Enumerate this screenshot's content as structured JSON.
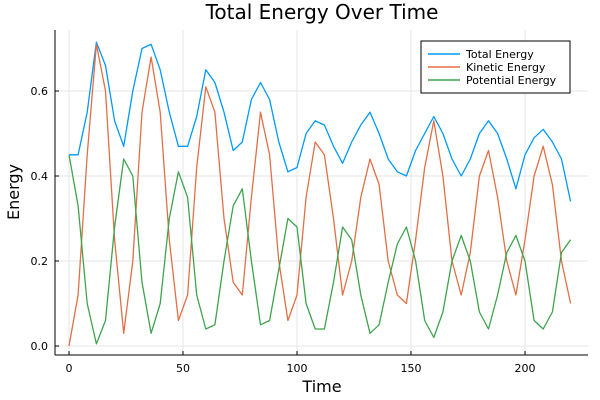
{
  "chart_data": {
    "type": "line",
    "title": "Total Energy Over Time",
    "xlabel": "Time",
    "ylabel": "Energy",
    "xlim": [
      -6,
      227
    ],
    "ylim": [
      -0.02,
      0.74
    ],
    "xticks": [
      0,
      50,
      100,
      150,
      200
    ],
    "xtick_labels": [
      "0",
      "50",
      "100",
      "150",
      "200"
    ],
    "yticks": [
      0.0,
      0.2,
      0.4,
      0.6
    ],
    "ytick_labels": [
      "0.0",
      "0.2",
      "0.4",
      "0.6"
    ],
    "grid": true,
    "legend_position": "top-right",
    "x": [
      0,
      4,
      8,
      12,
      16,
      20,
      24,
      28,
      32,
      36,
      40,
      44,
      48,
      52,
      56,
      60,
      64,
      68,
      72,
      76,
      80,
      84,
      88,
      92,
      96,
      100,
      104,
      108,
      112,
      116,
      120,
      124,
      128,
      132,
      136,
      140,
      144,
      148,
      152,
      156,
      160,
      164,
      168,
      172,
      176,
      180,
      184,
      188,
      192,
      196,
      200,
      204,
      208,
      212,
      216,
      220
    ],
    "series": [
      {
        "name": "Total Energy",
        "color": "#009AFA",
        "values": [
          0.45,
          0.45,
          0.55,
          0.715,
          0.66,
          0.53,
          0.47,
          0.6,
          0.7,
          0.71,
          0.65,
          0.55,
          0.47,
          0.47,
          0.54,
          0.65,
          0.62,
          0.55,
          0.46,
          0.48,
          0.58,
          0.62,
          0.58,
          0.48,
          0.41,
          0.42,
          0.5,
          0.53,
          0.52,
          0.47,
          0.43,
          0.48,
          0.52,
          0.55,
          0.5,
          0.44,
          0.41,
          0.4,
          0.46,
          0.5,
          0.54,
          0.5,
          0.44,
          0.4,
          0.44,
          0.5,
          0.53,
          0.5,
          0.44,
          0.37,
          0.45,
          0.49,
          0.51,
          0.48,
          0.44,
          0.34
        ]
      },
      {
        "name": "Kinetic Energy",
        "color": "#E26F46",
        "values": [
          0,
          0.12,
          0.45,
          0.71,
          0.6,
          0.25,
          0.03,
          0.2,
          0.55,
          0.68,
          0.55,
          0.25,
          0.06,
          0.12,
          0.42,
          0.61,
          0.55,
          0.3,
          0.15,
          0.12,
          0.35,
          0.55,
          0.45,
          0.2,
          0.06,
          0.12,
          0.35,
          0.48,
          0.45,
          0.3,
          0.12,
          0.2,
          0.35,
          0.44,
          0.38,
          0.2,
          0.12,
          0.1,
          0.25,
          0.42,
          0.53,
          0.4,
          0.2,
          0.12,
          0.22,
          0.4,
          0.46,
          0.35,
          0.2,
          0.12,
          0.25,
          0.4,
          0.47,
          0.38,
          0.2,
          0.1
        ]
      },
      {
        "name": "Potential Energy",
        "color": "#3DA44D",
        "values": [
          0.45,
          0.33,
          0.1,
          0.005,
          0.06,
          0.28,
          0.44,
          0.4,
          0.15,
          0.03,
          0.1,
          0.3,
          0.41,
          0.35,
          0.12,
          0.04,
          0.05,
          0.2,
          0.33,
          0.37,
          0.2,
          0.05,
          0.06,
          0.18,
          0.3,
          0.28,
          0.1,
          0.04,
          0.04,
          0.15,
          0.28,
          0.25,
          0.12,
          0.03,
          0.05,
          0.15,
          0.24,
          0.28,
          0.2,
          0.06,
          0.02,
          0.08,
          0.2,
          0.26,
          0.2,
          0.08,
          0.04,
          0.12,
          0.22,
          0.26,
          0.2,
          0.06,
          0.04,
          0.08,
          0.22,
          0.25
        ]
      }
    ]
  }
}
